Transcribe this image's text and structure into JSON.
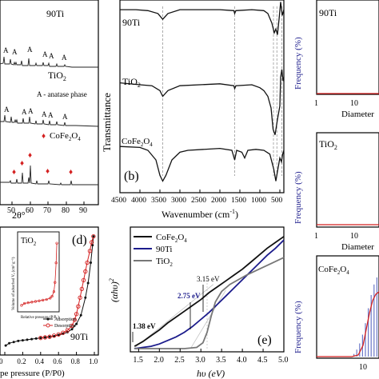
{
  "colors": {
    "black": "#111111",
    "navy": "#1c1c8c",
    "red": "#d42020",
    "gray": "#777777",
    "blue_bars": "#6a78c8",
    "dash": "#888888"
  },
  "chart_data": [
    {
      "id": "xrd",
      "type": "line",
      "xlabel": "2θ°",
      "xticks": [
        "50",
        "60",
        "70",
        "80",
        "90"
      ],
      "series": [
        {
          "name": "90Ti",
          "peak_marker": "A"
        },
        {
          "name": "TiO2",
          "peak_marker": "A",
          "note": "A - anatase phase"
        },
        {
          "name": "CoFe2O4",
          "peak_marker": "♦"
        }
      ]
    },
    {
      "id": "ftir",
      "type": "line",
      "label": "(b)",
      "xlabel": "Wavenumber (cm⁻¹)",
      "ylabel": "Transmittance",
      "xlim": [
        4500,
        400
      ],
      "xticks": [
        4500,
        4000,
        3500,
        3000,
        2500,
        2000,
        1500,
        1000,
        500
      ],
      "dashed_lines": [
        3430,
        1630,
        660,
        575,
        450
      ],
      "series": [
        {
          "name": "90Ti",
          "points": [
            [
              4500,
              0.95
            ],
            [
              4100,
              0.95
            ],
            [
              3800,
              0.945
            ],
            [
              3550,
              0.93
            ],
            [
              3430,
              0.9
            ],
            [
              3300,
              0.93
            ],
            [
              3000,
              0.95
            ],
            [
              2000,
              0.95
            ],
            [
              1650,
              0.945
            ],
            [
              1630,
              0.93
            ],
            [
              1600,
              0.945
            ],
            [
              1200,
              0.95
            ],
            [
              900,
              0.945
            ],
            [
              800,
              0.93
            ],
            [
              700,
              0.88
            ],
            [
              640,
              0.83
            ],
            [
              600,
              0.85
            ],
            [
              560,
              0.82
            ],
            [
              520,
              0.9
            ],
            [
              480,
              0.99
            ],
            [
              440,
              0.92
            ],
            [
              400,
              0.95
            ]
          ]
        },
        {
          "name": "TiO2",
          "points": [
            [
              4500,
              0.57
            ],
            [
              4000,
              0.56
            ],
            [
              3700,
              0.555
            ],
            [
              3500,
              0.53
            ],
            [
              3430,
              0.5
            ],
            [
              3300,
              0.53
            ],
            [
              3000,
              0.555
            ],
            [
              2000,
              0.565
            ],
            [
              1650,
              0.555
            ],
            [
              1630,
              0.54
            ],
            [
              1600,
              0.555
            ],
            [
              1200,
              0.56
            ],
            [
              1000,
              0.545
            ],
            [
              900,
              0.53
            ],
            [
              800,
              0.5
            ],
            [
              720,
              0.44
            ],
            [
              670,
              0.33
            ],
            [
              620,
              0.3
            ],
            [
              560,
              0.38
            ],
            [
              500,
              0.45
            ],
            [
              480,
              0.6
            ],
            [
              450,
              0.64
            ],
            [
              420,
              0.58
            ],
            [
              400,
              0.6
            ]
          ]
        },
        {
          "name": "CoFe2O4",
          "points": [
            [
              4500,
              0.24
            ],
            [
              4000,
              0.235
            ],
            [
              3800,
              0.22
            ],
            [
              3600,
              0.17
            ],
            [
              3500,
              0.09
            ],
            [
              3430,
              0.06
            ],
            [
              3350,
              0.09
            ],
            [
              3200,
              0.17
            ],
            [
              3000,
              0.21
            ],
            [
              2800,
              0.22
            ],
            [
              2000,
              0.23
            ],
            [
              1700,
              0.22
            ],
            [
              1630,
              0.17
            ],
            [
              1580,
              0.22
            ],
            [
              1450,
              0.21
            ],
            [
              1380,
              0.18
            ],
            [
              1300,
              0.22
            ],
            [
              1100,
              0.225
            ],
            [
              900,
              0.22
            ],
            [
              750,
              0.2
            ],
            [
              650,
              0.12
            ],
            [
              600,
              0.06
            ],
            [
              560,
              0.11
            ],
            [
              500,
              0.18
            ],
            [
              460,
              0.16
            ],
            [
              430,
              0.2
            ],
            [
              400,
              0.22
            ]
          ]
        }
      ]
    },
    {
      "id": "psd",
      "type": "bar",
      "xlabel": "Diameter",
      "ylabel": "Frequency (%)",
      "xscale": "log",
      "xticks": [
        "1",
        "10"
      ],
      "panels": [
        {
          "name": "90Ti",
          "bars": []
        },
        {
          "name": "TiO2",
          "bars": []
        },
        {
          "name": "CoFe2O4",
          "bars": [
            3,
            8,
            15,
            25,
            38,
            55,
            70,
            82,
            90
          ],
          "fit": true
        }
      ]
    },
    {
      "id": "bet",
      "type": "scatter",
      "label": "(d)",
      "xlabel": "pe pressure (P/P0)",
      "xlim": [
        0,
        1.0
      ],
      "xticks": [
        0,
        0.2,
        0.4,
        0.6,
        0.8,
        1.0
      ],
      "xticklabels": [
        "0",
        "0.2",
        "0.4",
        "0.6",
        "0.8",
        "1.0"
      ],
      "main_sample": "90Ti",
      "series": [
        {
          "name": "Adsorption",
          "x": [
            0.01,
            0.05,
            0.1,
            0.15,
            0.2,
            0.25,
            0.3,
            0.35,
            0.4,
            0.45,
            0.5,
            0.55,
            0.6,
            0.65,
            0.7,
            0.75,
            0.8,
            0.85,
            0.9,
            0.93,
            0.96,
            0.98,
            0.99
          ],
          "y": [
            8,
            12,
            14,
            16,
            17,
            18,
            19,
            20,
            21,
            22,
            23,
            24,
            26,
            28,
            31,
            36,
            45,
            60,
            90,
            115,
            150,
            180,
            195
          ]
        },
        {
          "name": "Desorption",
          "x": [
            0.99,
            0.97,
            0.95,
            0.92,
            0.9,
            0.88,
            0.86,
            0.84,
            0.82,
            0.8,
            0.78,
            0.75,
            0.7,
            0.65,
            0.6,
            0.55,
            0.5,
            0.45,
            0.4
          ],
          "y": [
            195,
            185,
            170,
            150,
            135,
            120,
            105,
            90,
            75,
            62,
            52,
            42,
            34,
            30,
            27,
            25,
            23,
            22,
            21
          ]
        }
      ],
      "inset": {
        "name": "TiO2",
        "ylabel": "Volume of adsorbed Vₐ (cm³ g⁻¹)",
        "xlabel": "Relative pressure (P/P₀)",
        "x": [
          0.02,
          0.1,
          0.2,
          0.3,
          0.4,
          0.5,
          0.6,
          0.7,
          0.8,
          0.85,
          0.9,
          0.93,
          0.96,
          0.98
        ],
        "y": [
          5,
          8,
          9,
          10,
          11,
          12,
          13,
          14,
          16,
          19,
          26,
          40,
          70,
          100
        ]
      }
    },
    {
      "id": "tauc",
      "type": "line",
      "label": "(e)",
      "xlabel": "hυ (eV)",
      "ylabel": "(αhυ)²",
      "xlim": [
        1.3,
        5.0
      ],
      "xticks": [
        1.5,
        2.0,
        2.5,
        3.0,
        3.5,
        4.0,
        4.5,
        5.0
      ],
      "xticklabels": [
        "1.5",
        "2.0",
        "2.5",
        "3.0",
        "3.5",
        "4.0",
        "4.5",
        "5.0"
      ],
      "annotations": [
        "3.15 eV",
        "2.75 eV",
        "1.38 eV"
      ],
      "series": [
        {
          "name": "CoFe2O4",
          "x": [
            1.4,
            1.6,
            1.8,
            2.0,
            2.2,
            2.4,
            2.6,
            2.8,
            3.0,
            3.2,
            3.4,
            3.6,
            3.8,
            4.0,
            4.2,
            4.4,
            4.6,
            4.8,
            5.0
          ],
          "y": [
            0.02,
            0.06,
            0.11,
            0.16,
            0.22,
            0.27,
            0.32,
            0.37,
            0.42,
            0.48,
            0.53,
            0.58,
            0.63,
            0.68,
            0.74,
            0.8,
            0.86,
            0.91,
            0.96
          ]
        },
        {
          "name": "90Ti",
          "x": [
            1.4,
            1.6,
            1.8,
            2.0,
            2.2,
            2.4,
            2.6,
            2.8,
            3.0,
            3.2,
            3.4,
            3.6,
            3.8,
            4.0,
            4.2,
            4.4,
            4.6,
            4.8,
            5.0
          ],
          "y": [
            0.0,
            0.01,
            0.02,
            0.04,
            0.07,
            0.1,
            0.14,
            0.19,
            0.25,
            0.31,
            0.38,
            0.45,
            0.52,
            0.59,
            0.66,
            0.73,
            0.8,
            0.86,
            0.93
          ]
        },
        {
          "name": "TiO2",
          "x": [
            1.4,
            2.0,
            2.6,
            2.9,
            3.05,
            3.15,
            3.25,
            3.35,
            3.5,
            3.7,
            3.9,
            4.1,
            4.4,
            4.7,
            5.0
          ],
          "y": [
            0.0,
            0.0,
            0.0,
            0.01,
            0.05,
            0.14,
            0.28,
            0.4,
            0.49,
            0.55,
            0.59,
            0.63,
            0.68,
            0.73,
            0.78
          ]
        }
      ]
    }
  ]
}
